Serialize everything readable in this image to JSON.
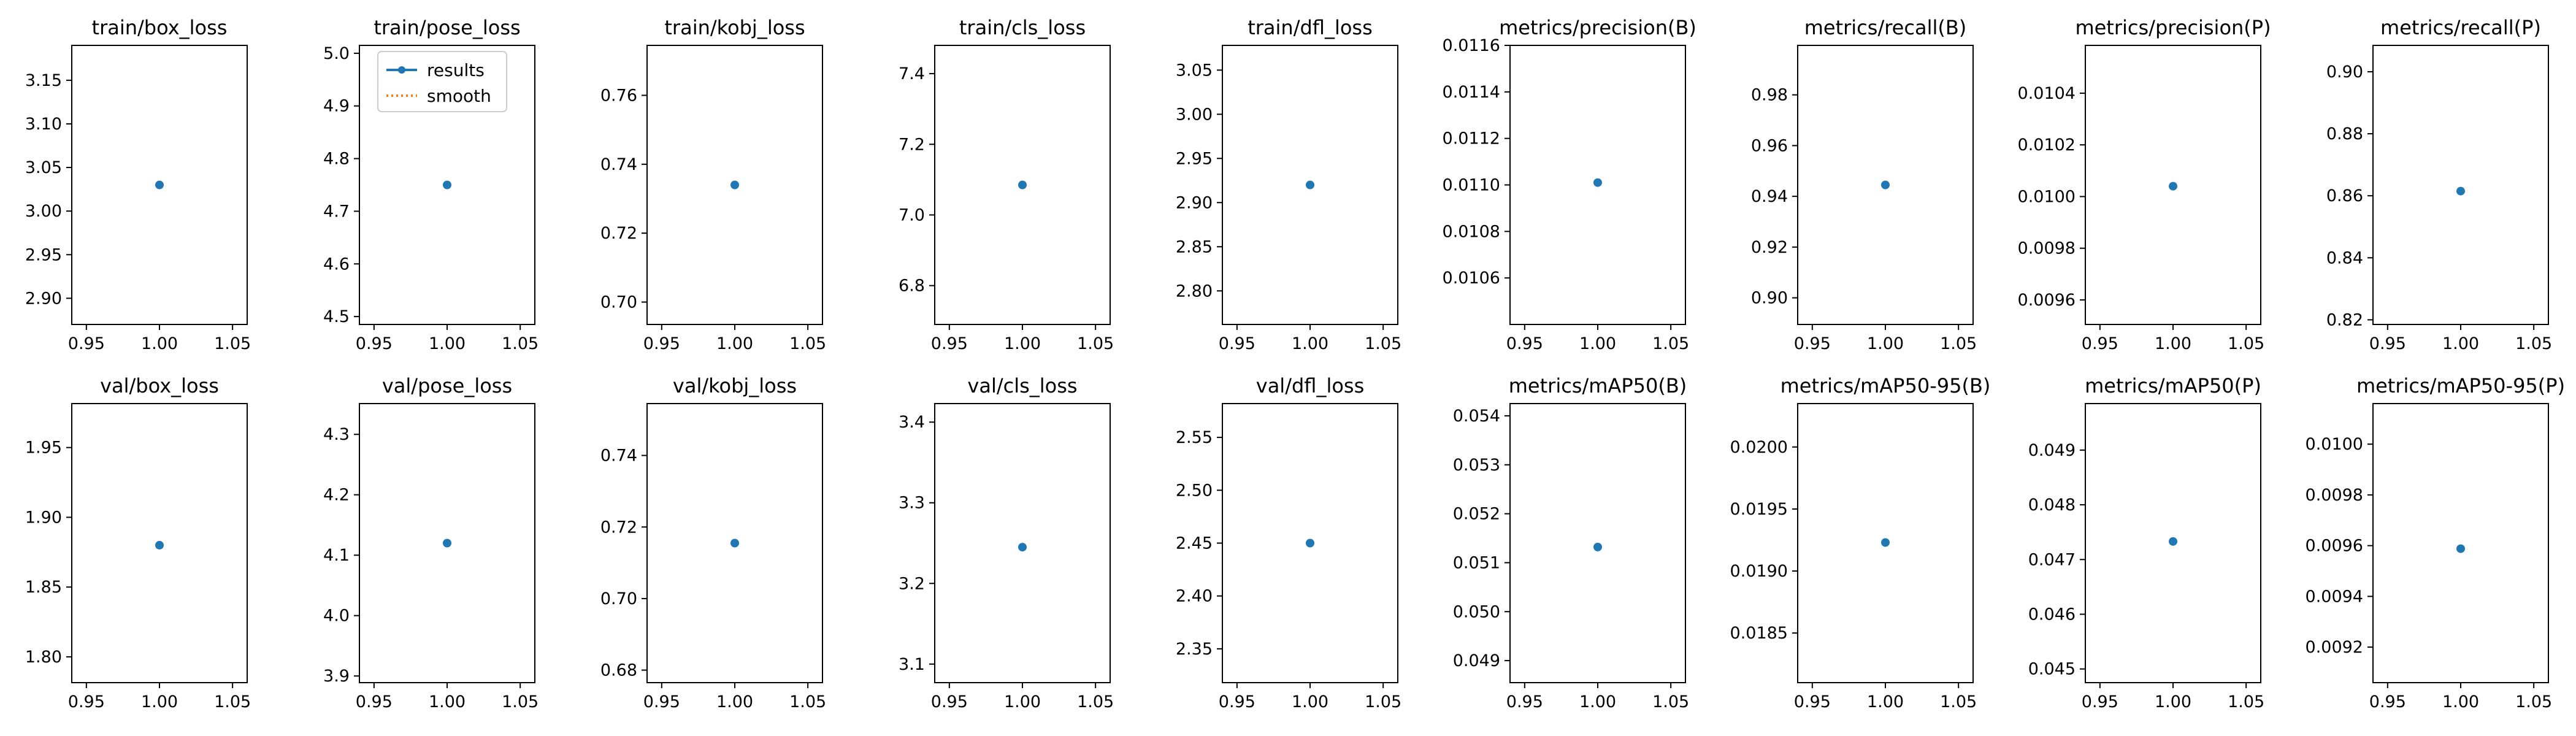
{
  "chart_data": [
    {
      "type": "scatter",
      "title": "train/box_loss",
      "series": [
        {
          "name": "results",
          "x": [
            1
          ],
          "y": [
            3.03
          ]
        }
      ],
      "xlim": [
        0.94,
        1.06
      ],
      "ylim": [
        2.87,
        3.19
      ],
      "xticks": [
        "0.95",
        "1.00",
        "1.05"
      ],
      "yticks": [
        "2.90",
        "2.95",
        "3.00",
        "3.05",
        "3.10",
        "3.15"
      ]
    },
    {
      "type": "scatter",
      "title": "train/pose_loss",
      "series": [
        {
          "name": "results",
          "x": [
            1
          ],
          "y": [
            4.75
          ]
        },
        {
          "name": "smooth",
          "x": [],
          "y": []
        }
      ],
      "legend": {
        "entries": [
          "results",
          "smooth"
        ],
        "loc": "upper-left"
      },
      "xlim": [
        0.94,
        1.06
      ],
      "ylim": [
        4.485,
        5.015
      ],
      "xticks": [
        "0.95",
        "1.00",
        "1.05"
      ],
      "yticks": [
        "4.5",
        "4.6",
        "4.7",
        "4.8",
        "4.9",
        "5.0"
      ]
    },
    {
      "type": "scatter",
      "title": "train/kobj_loss",
      "series": [
        {
          "name": "results",
          "x": [
            1
          ],
          "y": [
            0.734
          ]
        }
      ],
      "xlim": [
        0.94,
        1.06
      ],
      "ylim": [
        0.6935,
        0.7745
      ],
      "xticks": [
        "0.95",
        "1.00",
        "1.05"
      ],
      "yticks": [
        "0.70",
        "0.72",
        "0.74",
        "0.76"
      ]
    },
    {
      "type": "scatter",
      "title": "train/cls_loss",
      "series": [
        {
          "name": "results",
          "x": [
            1
          ],
          "y": [
            7.085
          ]
        }
      ],
      "xlim": [
        0.94,
        1.06
      ],
      "ylim": [
        6.69,
        7.48
      ],
      "xticks": [
        "0.95",
        "1.00",
        "1.05"
      ],
      "yticks": [
        "6.8",
        "7.0",
        "7.2",
        "7.4"
      ]
    },
    {
      "type": "scatter",
      "title": "train/dfl_loss",
      "series": [
        {
          "name": "results",
          "x": [
            1
          ],
          "y": [
            2.92
          ]
        }
      ],
      "xlim": [
        0.94,
        1.06
      ],
      "ylim": [
        2.762,
        3.078
      ],
      "xticks": [
        "0.95",
        "1.00",
        "1.05"
      ],
      "yticks": [
        "2.80",
        "2.85",
        "2.90",
        "2.95",
        "3.00",
        "3.05"
      ]
    },
    {
      "type": "scatter",
      "title": "metrics/precision(B)",
      "series": [
        {
          "name": "results",
          "x": [
            1
          ],
          "y": [
            0.01101
          ]
        }
      ],
      "xlim": [
        0.94,
        1.06
      ],
      "ylim": [
        0.0104,
        0.0116
      ],
      "xticks": [
        "0.95",
        "1.00",
        "1.05"
      ],
      "yticks": [
        "0.0106",
        "0.0108",
        "0.0110",
        "0.0112",
        "0.0114",
        "0.0116"
      ]
    },
    {
      "type": "scatter",
      "title": "metrics/recall(B)",
      "series": [
        {
          "name": "results",
          "x": [
            1
          ],
          "y": [
            0.9445
          ]
        }
      ],
      "xlim": [
        0.94,
        1.06
      ],
      "ylim": [
        0.8895,
        0.9995
      ],
      "xticks": [
        "0.95",
        "1.00",
        "1.05"
      ],
      "yticks": [
        "0.90",
        "0.92",
        "0.94",
        "0.96",
        "0.98"
      ]
    },
    {
      "type": "scatter",
      "title": "metrics/precision(P)",
      "series": [
        {
          "name": "results",
          "x": [
            1
          ],
          "y": [
            0.01004
          ]
        }
      ],
      "xlim": [
        0.94,
        1.06
      ],
      "ylim": [
        0.009505,
        0.010585
      ],
      "xticks": [
        "0.95",
        "1.00",
        "1.05"
      ],
      "yticks": [
        "0.0096",
        "0.0098",
        "0.0100",
        "0.0102",
        "0.0104"
      ]
    },
    {
      "type": "scatter",
      "title": "metrics/recall(P)",
      "series": [
        {
          "name": "results",
          "x": [
            1
          ],
          "y": [
            0.8615
          ]
        }
      ],
      "xlim": [
        0.94,
        1.06
      ],
      "ylim": [
        0.8185,
        0.9085
      ],
      "xticks": [
        "0.95",
        "1.00",
        "1.05"
      ],
      "yticks": [
        "0.82",
        "0.84",
        "0.86",
        "0.88",
        "0.90"
      ]
    },
    {
      "type": "scatter",
      "title": "val/box_loss",
      "series": [
        {
          "name": "results",
          "x": [
            1
          ],
          "y": [
            1.88
          ]
        }
      ],
      "xlim": [
        0.94,
        1.06
      ],
      "ylim": [
        1.7815,
        1.9815
      ],
      "xticks": [
        "0.95",
        "1.00",
        "1.05"
      ],
      "yticks": [
        "1.80",
        "1.85",
        "1.90",
        "1.95"
      ]
    },
    {
      "type": "scatter",
      "title": "val/pose_loss",
      "series": [
        {
          "name": "results",
          "x": [
            1
          ],
          "y": [
            4.12
          ]
        }
      ],
      "xlim": [
        0.94,
        1.06
      ],
      "ylim": [
        3.889,
        4.351
      ],
      "xticks": [
        "0.95",
        "1.00",
        "1.05"
      ],
      "yticks": [
        "3.9",
        "4.0",
        "4.1",
        "4.2",
        "4.3"
      ]
    },
    {
      "type": "scatter",
      "title": "val/kobj_loss",
      "series": [
        {
          "name": "results",
          "x": [
            1
          ],
          "y": [
            0.7155
          ]
        }
      ],
      "xlim": [
        0.94,
        1.06
      ],
      "ylim": [
        0.6765,
        0.7545
      ],
      "xticks": [
        "0.95",
        "1.00",
        "1.05"
      ],
      "yticks": [
        "0.68",
        "0.70",
        "0.72",
        "0.74"
      ]
    },
    {
      "type": "scatter",
      "title": "val/cls_loss",
      "series": [
        {
          "name": "results",
          "x": [
            1
          ],
          "y": [
            3.245
          ]
        }
      ],
      "xlim": [
        0.94,
        1.06
      ],
      "ylim": [
        3.077,
        3.423
      ],
      "xticks": [
        "0.95",
        "1.00",
        "1.05"
      ],
      "yticks": [
        "3.1",
        "3.2",
        "3.3",
        "3.4"
      ]
    },
    {
      "type": "scatter",
      "title": "val/dfl_loss",
      "series": [
        {
          "name": "results",
          "x": [
            1
          ],
          "y": [
            2.45
          ]
        }
      ],
      "xlim": [
        0.94,
        1.06
      ],
      "ylim": [
        2.318,
        2.582
      ],
      "xticks": [
        "0.95",
        "1.00",
        "1.05"
      ],
      "yticks": [
        "2.35",
        "2.40",
        "2.45",
        "2.50",
        "2.55"
      ]
    },
    {
      "type": "scatter",
      "title": "metrics/mAP50(B)",
      "series": [
        {
          "name": "results",
          "x": [
            1
          ],
          "y": [
            0.05132
          ]
        }
      ],
      "xlim": [
        0.94,
        1.06
      ],
      "ylim": [
        0.04855,
        0.05425
      ],
      "xticks": [
        "0.95",
        "1.00",
        "1.05"
      ],
      "yticks": [
        "0.049",
        "0.050",
        "0.051",
        "0.052",
        "0.053",
        "0.054"
      ]
    },
    {
      "type": "scatter",
      "title": "metrics/mAP50-95(B)",
      "series": [
        {
          "name": "results",
          "x": [
            1
          ],
          "y": [
            0.01923
          ]
        }
      ],
      "xlim": [
        0.94,
        1.06
      ],
      "ylim": [
        0.0181,
        0.02035
      ],
      "xticks": [
        "0.95",
        "1.00",
        "1.05"
      ],
      "yticks": [
        "0.0185",
        "0.0190",
        "0.0195",
        "0.0200"
      ]
    },
    {
      "type": "scatter",
      "title": "metrics/mAP50(P)",
      "series": [
        {
          "name": "results",
          "x": [
            1
          ],
          "y": [
            0.04733
          ]
        }
      ],
      "xlim": [
        0.94,
        1.06
      ],
      "ylim": [
        0.04475,
        0.04985
      ],
      "xticks": [
        "0.95",
        "1.00",
        "1.05"
      ],
      "yticks": [
        "0.045",
        "0.046",
        "0.047",
        "0.048",
        "0.049"
      ]
    },
    {
      "type": "scatter",
      "title": "metrics/mAP50-95(P)",
      "series": [
        {
          "name": "results",
          "x": [
            1
          ],
          "y": [
            0.009588
          ]
        }
      ],
      "xlim": [
        0.94,
        1.06
      ],
      "ylim": [
        0.00906,
        0.01016
      ],
      "xticks": [
        "0.95",
        "1.00",
        "1.05"
      ],
      "yticks": [
        "0.0092",
        "0.0094",
        "0.0096",
        "0.0098",
        "0.0100"
      ]
    }
  ],
  "colors": {
    "series_results": "#1f77b4",
    "series_smooth": "#ff7f0e",
    "axes": "#000000"
  }
}
